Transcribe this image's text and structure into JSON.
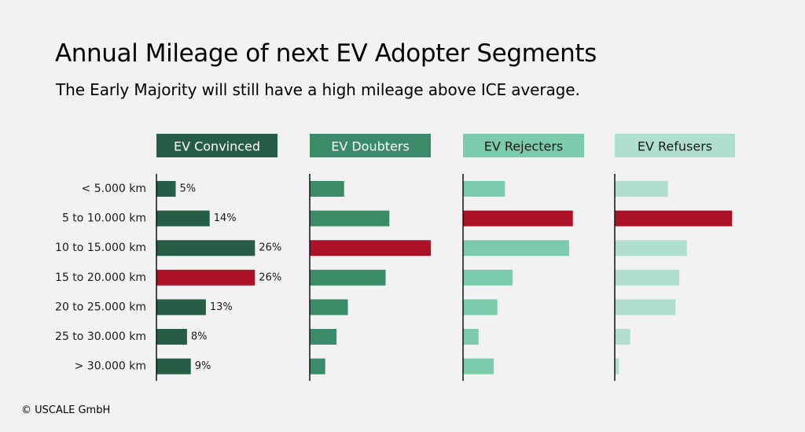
{
  "title": "Annual Mileage of next EV Adopter Segments",
  "subtitle": "The Early Majority will still have a high mileage above ICE average.",
  "copyright": "© USCALE GmbH",
  "colors": {
    "background": "#f2f2f2",
    "highlight": "#ab1228",
    "axis": "#111111",
    "label_text": "#1a1a1a"
  },
  "chart_data": {
    "type": "bar",
    "orientation": "horizontal",
    "categories": [
      "< 5.000 km",
      "5 to 10.000 km",
      "10 to 15.000 km",
      "15 to 20.000 km",
      "20 to 25.000 km",
      "25 to 30.000 km",
      "> 30.000 km"
    ],
    "series": [
      {
        "name": "EV Convinced",
        "color": "#255e45",
        "header_text_color": "#ffffff",
        "values": [
          5,
          14,
          26,
          26,
          13,
          8,
          9
        ],
        "labels": [
          "5%",
          "14%",
          "26%",
          "26%",
          "13%",
          "8%",
          "9%"
        ],
        "highlight_index": 3
      },
      {
        "name": "EV Doubters",
        "color": "#3a8c69",
        "header_text_color": "#ffffff",
        "values": [
          9,
          21,
          32,
          20,
          10,
          7,
          4
        ],
        "labels": [],
        "highlight_index": 2
      },
      {
        "name": "EV Rejecters",
        "color": "#7accaa",
        "header_text_color": "#1a1a1a",
        "values": [
          11,
          29,
          28,
          13,
          9,
          4,
          8
        ],
        "labels": [],
        "highlight_index": 1
      },
      {
        "name": "EV Refusers",
        "color": "#b0e0cd",
        "header_text_color": "#1a1a1a",
        "values": [
          14,
          31,
          19,
          17,
          16,
          4,
          1
        ],
        "labels": [],
        "highlight_index": 1
      }
    ],
    "xlim": [
      0,
      32
    ]
  }
}
